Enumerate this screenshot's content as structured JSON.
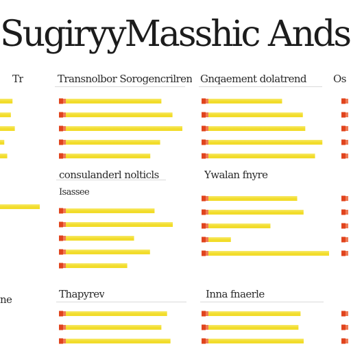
{
  "title": "SugiryyMasshic Ands Gra",
  "colors": {
    "bar": "#f2dc2a",
    "bar_light": "#f7ea6a",
    "tick": "#e0441e",
    "tick_light": "#f07a55",
    "divider": "#d9d9d9"
  },
  "chart_data": [
    {
      "type": "bar",
      "panel": "left-edge-1",
      "title": "",
      "values": [
        0.38,
        0.33,
        0.45,
        0.13,
        0.22
      ]
    },
    {
      "type": "bar",
      "panel": "left-edge-2",
      "title": "",
      "values": [
        0.58
      ]
    },
    {
      "type": "bar",
      "panel": "left-edge-3",
      "title": "",
      "values": []
    },
    {
      "type": "bar",
      "panel": "top-1",
      "title": "Transnolbor Sorogencrilrend",
      "values": [
        0.83,
        0.92,
        1.0,
        0.82,
        0.74
      ]
    },
    {
      "type": "bar",
      "panel": "top-2",
      "title": "Gnqaement dolatrend",
      "values": [
        0.66,
        0.83,
        0.85,
        0.99,
        0.93
      ]
    },
    {
      "type": "bar",
      "panel": "top-3",
      "title": "Os",
      "values": [
        0.25,
        0.25,
        0.25,
        0.25,
        0.25
      ]
    },
    {
      "type": "bar",
      "panel": "mid-1",
      "title": "consulanderl nolticls",
      "subtitle": "Isassee",
      "values": [
        0.84,
        1.0,
        0.66,
        0.8,
        0.6
      ]
    },
    {
      "type": "bar",
      "panel": "mid-2",
      "title": "Ywalan fnyre",
      "values": [
        0.75,
        0.8,
        0.54,
        0.23,
        1.0
      ]
    },
    {
      "type": "bar",
      "panel": "mid-3",
      "title": "",
      "values": [
        0.25,
        0.25,
        0.25,
        0.25,
        0.25
      ]
    },
    {
      "type": "bar",
      "panel": "bottom-1",
      "title": "Thapyrev",
      "values": [
        0.95,
        0.9,
        0.98
      ]
    },
    {
      "type": "bar",
      "panel": "bottom-2",
      "title": "Inna fnaerle",
      "values": [
        0.95,
        0.93,
        0.98
      ]
    },
    {
      "type": "bar",
      "panel": "bottom-3",
      "title": "",
      "values": [
        0.25,
        0.25,
        0.25
      ]
    }
  ],
  "left_labels": {
    "top": "Tr",
    "bottom": "ne"
  }
}
